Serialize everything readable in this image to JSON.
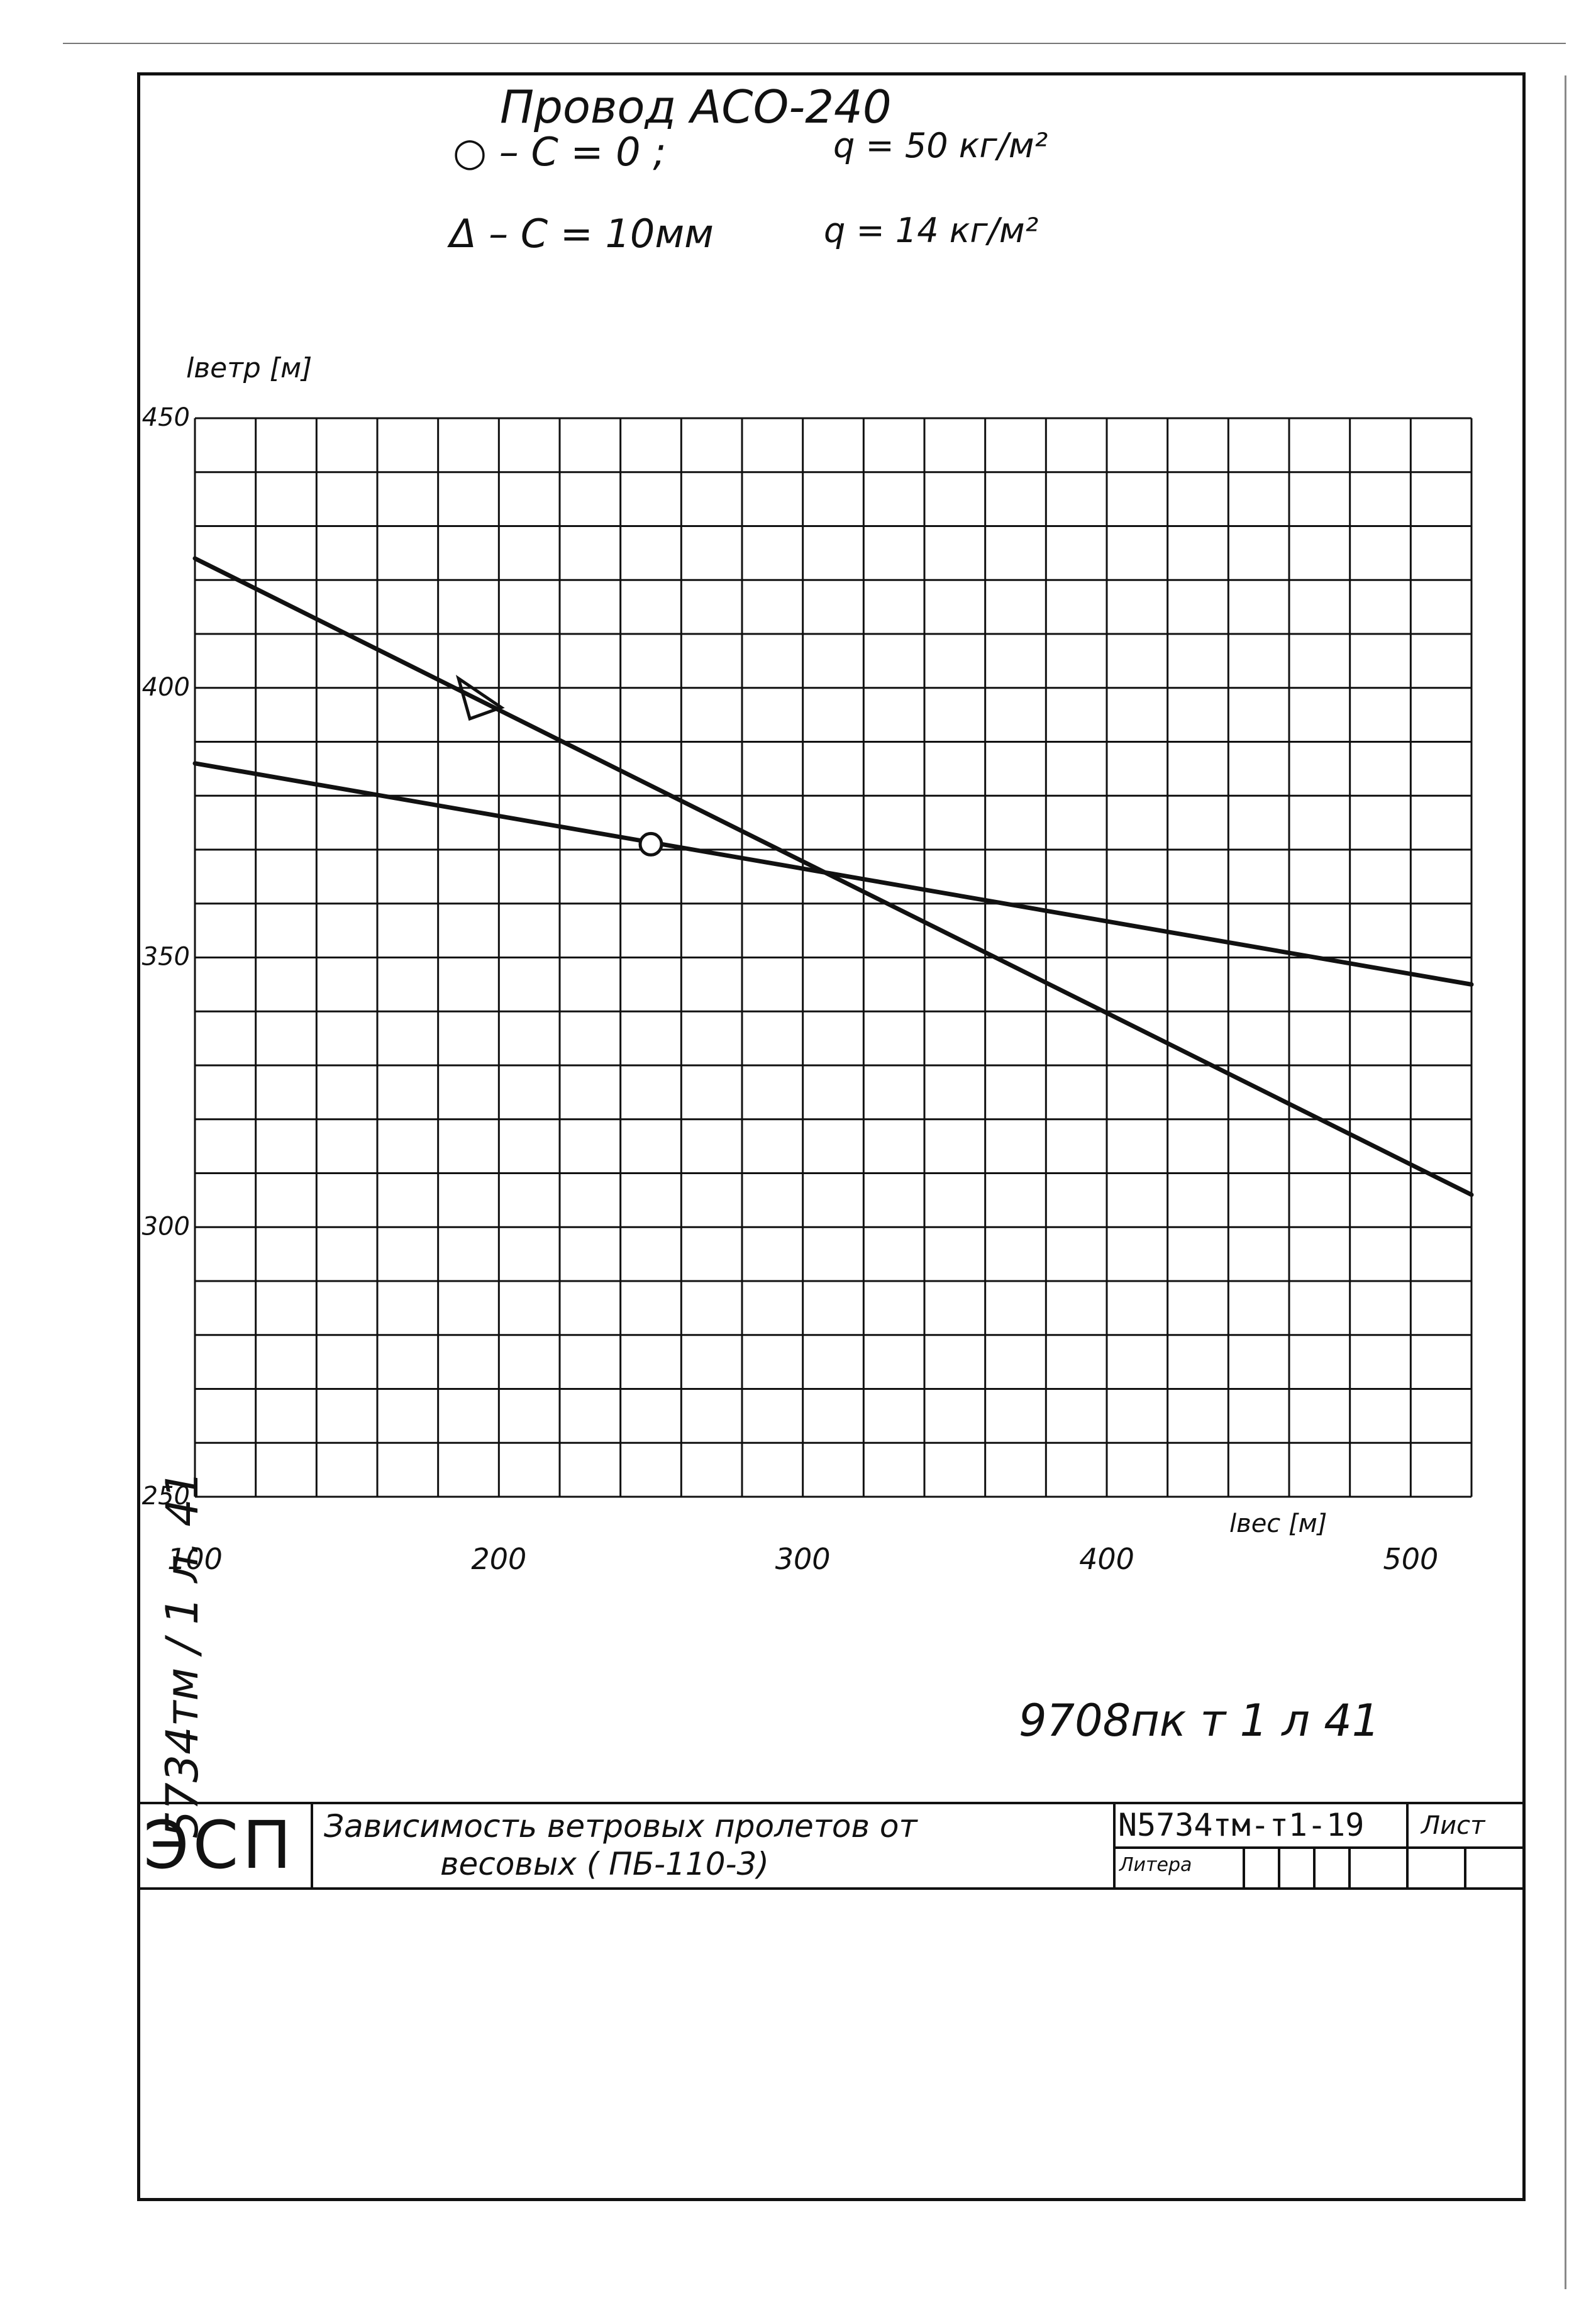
{
  "chart_data": {
    "type": "line",
    "title": "Провод АСО-240",
    "legend": [
      {
        "marker": "circle",
        "text_left": "○ – C = 0 ;",
        "text_right": "q = 50 кг/м²"
      },
      {
        "marker": "triangle",
        "text_left": "Δ – C = 10мм",
        "text_right": "q = 14 кг/м²"
      }
    ],
    "xlabel": "lвес [м]",
    "ylabel": "lветр [м]",
    "xlim": [
      100,
      520
    ],
    "ylim": [
      250,
      450
    ],
    "x_ticks": [
      100,
      200,
      300,
      400,
      500
    ],
    "y_ticks": [
      250,
      300,
      350,
      400,
      450
    ],
    "grid": true,
    "series": [
      {
        "marker": "circle",
        "x": [
          100,
          520
        ],
        "y": [
          386,
          345
        ],
        "marker_at": [
          250,
          371
        ]
      },
      {
        "marker": "triangle",
        "x": [
          100,
          520
        ],
        "y": [
          424,
          306
        ],
        "marker_at": [
          195,
          398
        ]
      }
    ]
  },
  "side_note": "5734тм / 1 л. 41",
  "bottom_note": "9708пк т 1 л 41",
  "title_block": {
    "org": "ЭСП",
    "title_line1": "Зависимость ветровых пролетов от",
    "title_line2": "весовых ( ПБ-110-3)",
    "doc_number": "N5734тм-т1-19",
    "sheet_label": "Лист",
    "litera_label": "Литера"
  },
  "colors": {
    "ink": "#111111",
    "paper": "#ffffff"
  }
}
